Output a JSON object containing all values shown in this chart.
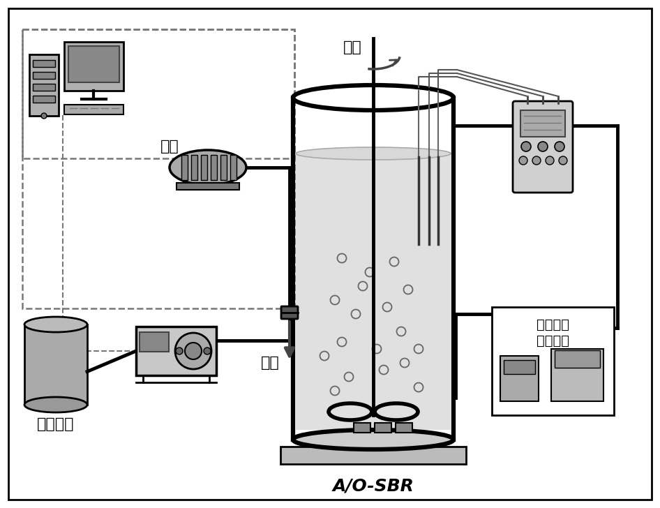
{
  "title": "A/O-SBR",
  "label_jiaobai": "携拌",
  "label_puqi": "曝气",
  "label_chushui": "出水",
  "label_moni": "模拟污水",
  "label_chaosheng_1": "超声处理",
  "label_chaosheng_2": "污泥单元",
  "bg_color": "#ffffff",
  "water_color": "#e0e0e0",
  "gray_light": "#cccccc",
  "gray_mid": "#999999",
  "gray_dark": "#666666"
}
